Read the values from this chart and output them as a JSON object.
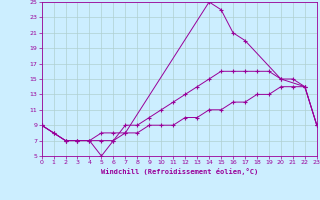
{
  "xlabel": "Windchill (Refroidissement éolien,°C)",
  "bg_color": "#cceeff",
  "grid_color": "#b0d0d0",
  "line_color": "#990099",
  "xlim": [
    0,
    23
  ],
  "ylim": [
    5,
    25
  ],
  "xticks": [
    0,
    1,
    2,
    3,
    4,
    5,
    6,
    7,
    8,
    9,
    10,
    11,
    12,
    13,
    14,
    15,
    16,
    17,
    18,
    19,
    20,
    21,
    22,
    23
  ],
  "yticks": [
    5,
    7,
    9,
    11,
    13,
    15,
    17,
    19,
    21,
    23,
    25
  ],
  "line1_x": [
    0,
    1,
    2,
    3,
    4,
    5,
    6,
    7,
    14,
    15,
    16,
    17,
    20,
    21,
    22,
    23
  ],
  "line1_y": [
    9,
    8,
    7,
    7,
    7,
    5,
    7,
    8,
    25,
    24,
    21,
    20,
    15,
    15,
    14,
    9
  ],
  "line2_x": [
    0,
    2,
    3,
    5,
    6,
    7,
    8,
    9,
    10,
    11,
    12,
    13,
    14,
    15,
    16,
    17,
    18,
    19,
    20,
    22,
    23
  ],
  "line2_y": [
    9,
    7,
    7,
    7,
    7,
    9,
    9,
    10,
    11,
    12,
    13,
    14,
    15,
    16,
    16,
    16,
    16,
    16,
    15,
    14,
    9
  ],
  "line3_x": [
    0,
    1,
    2,
    3,
    4,
    5,
    6,
    7,
    8,
    9,
    10,
    11,
    12,
    13,
    14,
    15,
    16,
    17,
    18,
    19,
    20,
    21,
    22,
    23
  ],
  "line3_y": [
    9,
    8,
    7,
    7,
    7,
    8,
    8,
    8,
    8,
    9,
    9,
    9,
    10,
    10,
    11,
    11,
    12,
    12,
    13,
    13,
    14,
    14,
    14,
    9
  ]
}
